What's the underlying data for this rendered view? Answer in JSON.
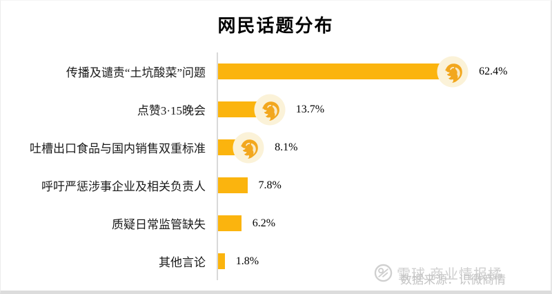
{
  "chart_data": {
    "type": "bar",
    "orientation": "horizontal",
    "title": "网民话题分布",
    "categories": [
      "传播及谴责“土坑酸菜”问题",
      "点赞3·15晚会",
      "吐槽出口食品与国内销售双重标准",
      "呼吁严惩涉事企业及相关负责人",
      "质疑日常监管缺失",
      "其他言论"
    ],
    "values": [
      62.4,
      13.7,
      8.1,
      7.8,
      6.2,
      1.8
    ],
    "value_labels": [
      "62.4%",
      "13.7%",
      "8.1%",
      "7.8%",
      "6.2%",
      "1.8%"
    ],
    "badge_rows": [
      true,
      true,
      true,
      false,
      false,
      false
    ],
    "xlim": [
      0,
      70
    ],
    "grid": "off",
    "legend": "none",
    "value_label_position": "end-of-bar"
  },
  "colors": {
    "bar": "#fbb40e",
    "badge_circle": "#fbf2d8",
    "badge_lion": "#f2a71e",
    "axis_line": "#d9d9d9",
    "watermark": "#c9c9c9"
  },
  "icons": {
    "badge": "lion-badge-icon",
    "watermark_logo": "xueqiu-snowball-icon"
  },
  "watermark": {
    "xueqiu_text": "雪球 商业情报橘",
    "source_text": "数据来源：识微商情"
  }
}
